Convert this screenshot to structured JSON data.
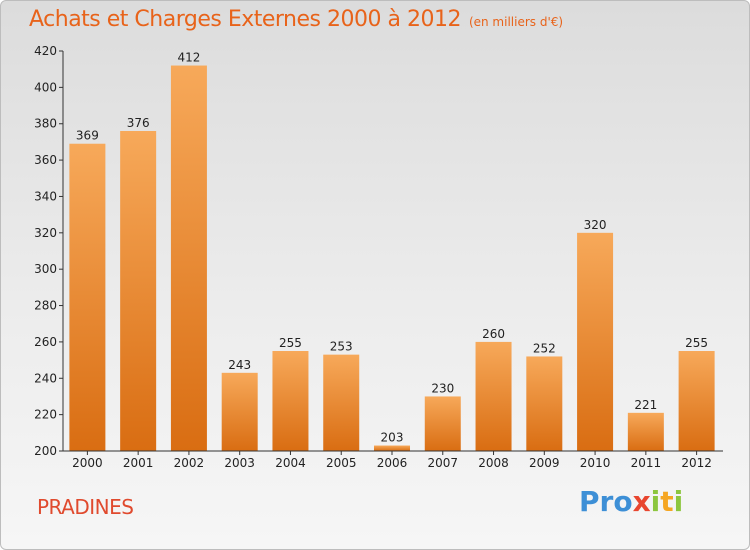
{
  "header": {
    "title": "Achats et Charges Externes 2000 à 2012",
    "unit": "(en milliers d'€)"
  },
  "footer": {
    "city": "PRADINES",
    "logo": [
      "Pro",
      "x",
      "i",
      "t",
      "i"
    ]
  },
  "colors": {
    "bar_top": "#f7a95a",
    "bar_bottom": "#d96d12",
    "title": "#e8631a",
    "city": "#e04a2e"
  },
  "chart_data": {
    "type": "bar",
    "categories": [
      "2000",
      "2001",
      "2002",
      "2003",
      "2004",
      "2005",
      "2006",
      "2007",
      "2008",
      "2009",
      "2010",
      "2011",
      "2012"
    ],
    "values": [
      369,
      376,
      412,
      243,
      255,
      253,
      203,
      230,
      260,
      252,
      320,
      221,
      255
    ],
    "title": "Achats et Charges Externes 2000 à 2012",
    "ylim": [
      200,
      420
    ],
    "yticks": [
      200,
      220,
      240,
      260,
      280,
      300,
      320,
      340,
      360,
      380,
      400,
      420
    ],
    "grid": false,
    "legend": "none"
  }
}
